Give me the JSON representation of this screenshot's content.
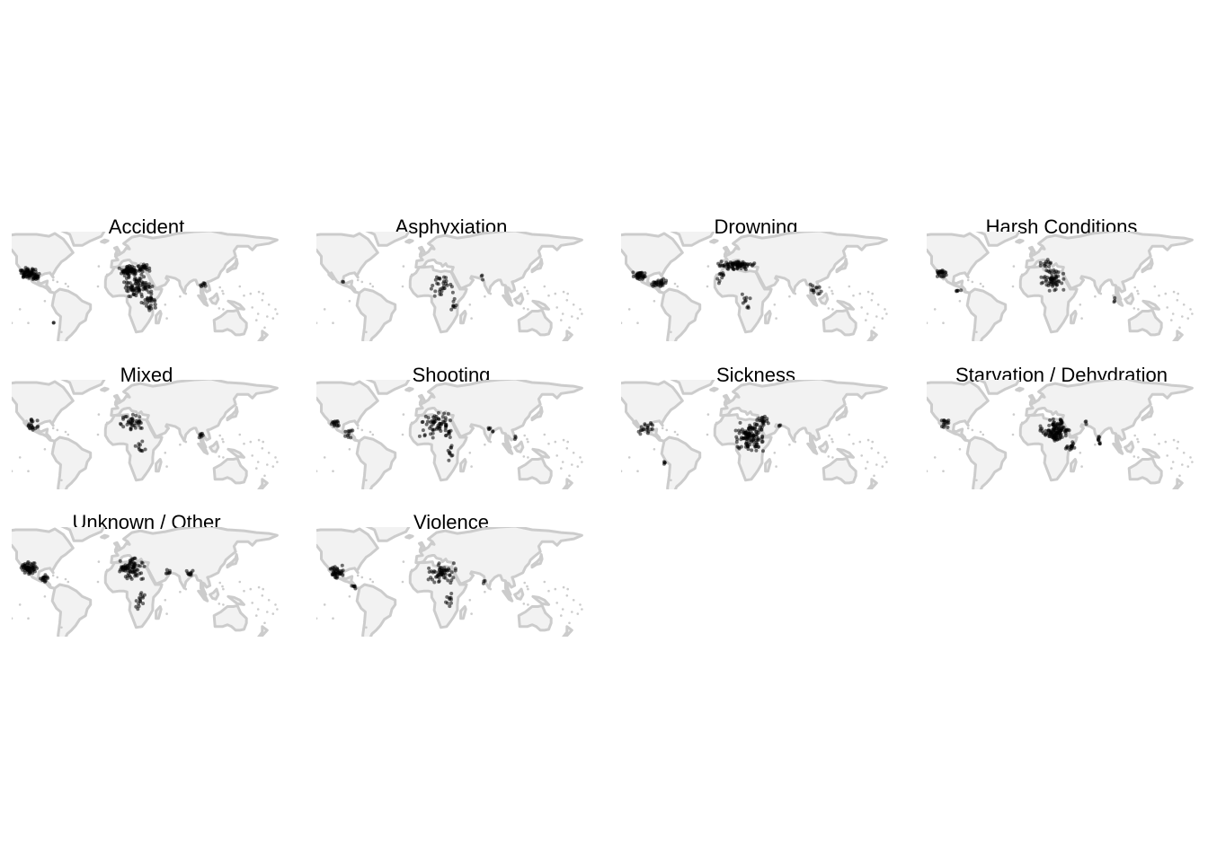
{
  "figure": {
    "background": "#ffffff",
    "land_fill": "#f2f2f2",
    "land_border": "#cccccc",
    "point_color": "#000000",
    "point_opacity": 0.55
  },
  "panels": [
    {
      "title": "Accident",
      "hotspots": [
        [
          -110,
          30,
          10,
          6,
          60
        ],
        [
          -100,
          25,
          6,
          5,
          20
        ],
        [
          10,
          32,
          12,
          6,
          60
        ],
        [
          20,
          15,
          20,
          14,
          80
        ],
        [
          28,
          35,
          10,
          5,
          25
        ],
        [
          35,
          0,
          10,
          14,
          30
        ],
        [
          100,
          18,
          4,
          4,
          8
        ],
        [
          -80,
          -25,
          2,
          2,
          2
        ]
      ]
    },
    {
      "title": "Asphyxiation",
      "hotspots": [
        [
          -98,
          20,
          2,
          2,
          2
        ],
        [
          20,
          15,
          15,
          14,
          30
        ],
        [
          35,
          -5,
          6,
          10,
          8
        ],
        [
          70,
          25,
          3,
          3,
          3
        ]
      ]
    },
    {
      "title": "Drowning",
      "hotspots": [
        [
          -108,
          27,
          8,
          5,
          40
        ],
        [
          -85,
          18,
          10,
          6,
          30
        ],
        [
          10,
          38,
          25,
          5,
          80
        ],
        [
          -10,
          25,
          6,
          8,
          10
        ],
        [
          20,
          0,
          8,
          12,
          10
        ],
        [
          105,
          10,
          8,
          8,
          12
        ]
      ]
    },
    {
      "title": "Harsh Conditions",
      "hotspots": [
        [
          -112,
          30,
          8,
          5,
          25
        ],
        [
          -90,
          10,
          6,
          6,
          5
        ],
        [
          22,
          22,
          18,
          14,
          60
        ],
        [
          15,
          40,
          10,
          6,
          12
        ],
        [
          95,
          0,
          3,
          3,
          3
        ]
      ]
    },
    {
      "title": "Mixed",
      "hotspots": [
        [
          -105,
          25,
          8,
          8,
          20
        ],
        [
          15,
          28,
          18,
          10,
          40
        ],
        [
          25,
          0,
          8,
          10,
          10
        ],
        [
          98,
          15,
          4,
          6,
          8
        ]
      ]
    },
    {
      "title": "Shooting",
      "hotspots": [
        [
          -108,
          28,
          6,
          5,
          15
        ],
        [
          -90,
          15,
          6,
          6,
          10
        ],
        [
          15,
          25,
          22,
          14,
          70
        ],
        [
          30,
          -5,
          6,
          10,
          10
        ],
        [
          80,
          20,
          4,
          4,
          6
        ],
        [
          110,
          12,
          3,
          3,
          3
        ]
      ]
    },
    {
      "title": "Sickness",
      "hotspots": [
        [
          -100,
          22,
          12,
          8,
          20
        ],
        [
          -78,
          -15,
          3,
          3,
          4
        ],
        [
          25,
          12,
          20,
          18,
          120
        ],
        [
          40,
          30,
          10,
          6,
          20
        ],
        [
          60,
          25,
          3,
          3,
          3
        ]
      ]
    },
    {
      "title": "Starvation / Dehydration",
      "hotspots": [
        [
          -108,
          28,
          6,
          6,
          15
        ],
        [
          25,
          20,
          20,
          14,
          120
        ],
        [
          45,
          0,
          8,
          8,
          15
        ],
        [
          78,
          8,
          3,
          6,
          8
        ],
        [
          62,
          28,
          3,
          3,
          3
        ]
      ]
    },
    {
      "title": "Unknown / Other",
      "hotspots": [
        [
          -110,
          30,
          12,
          7,
          60
        ],
        [
          -92,
          18,
          6,
          6,
          15
        ],
        [
          15,
          30,
          18,
          14,
          80
        ],
        [
          25,
          -5,
          8,
          12,
          15
        ],
        [
          60,
          25,
          5,
          4,
          6
        ],
        [
          85,
          25,
          8,
          6,
          10
        ]
      ]
    },
    {
      "title": "Violence",
      "hotspots": [
        [
          -105,
          25,
          10,
          8,
          40
        ],
        [
          -85,
          8,
          4,
          5,
          6
        ],
        [
          20,
          25,
          20,
          14,
          60
        ],
        [
          30,
          -5,
          6,
          10,
          10
        ],
        [
          72,
          15,
          3,
          3,
          3
        ]
      ]
    }
  ]
}
